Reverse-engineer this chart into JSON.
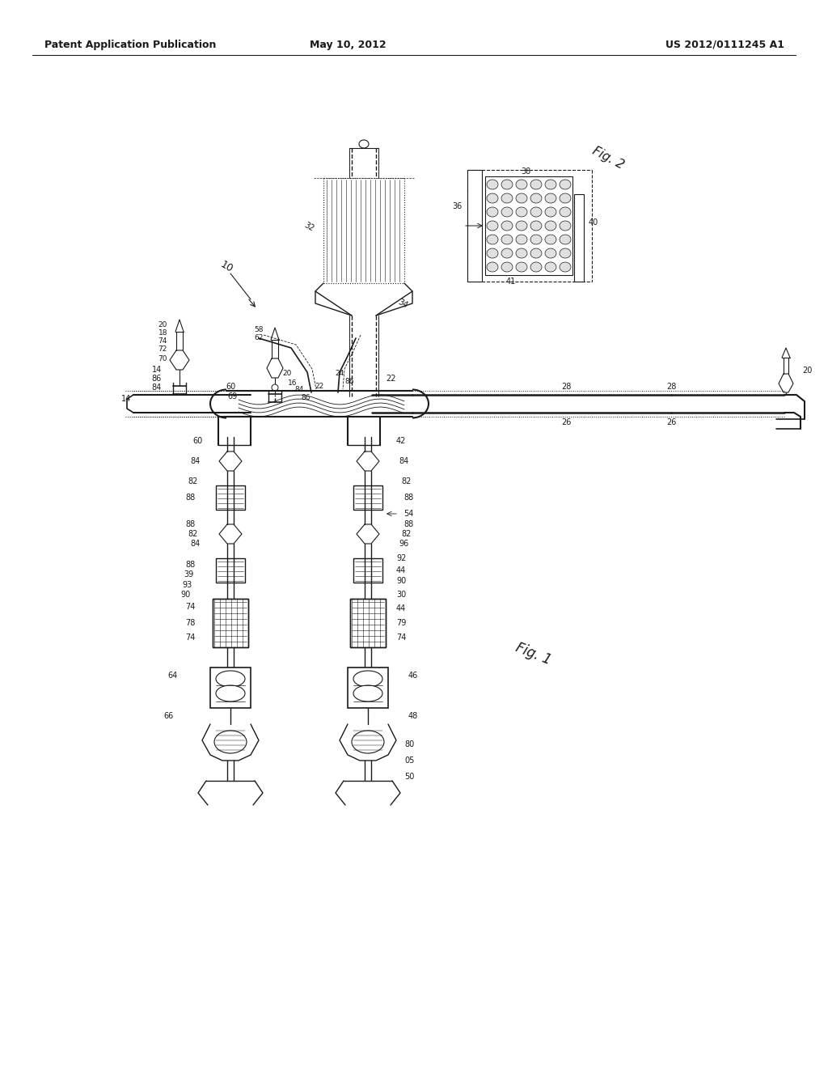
{
  "bg_color": "#ffffff",
  "line_color": "#1a1a1a",
  "header_left": "Patent Application Publication",
  "header_center": "May 10, 2012",
  "header_right": "US 2012/0111245 A1"
}
